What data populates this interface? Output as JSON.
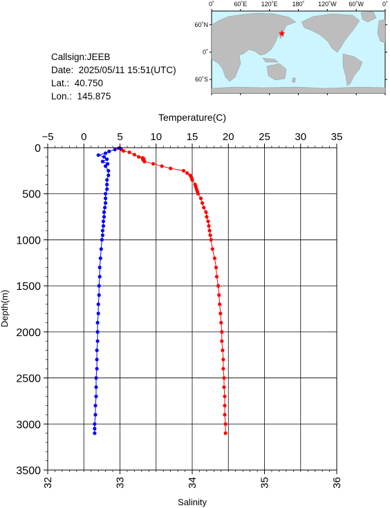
{
  "header": {
    "callsign": "Callsign:JEEB",
    "date": "Date:  2025/05/11 15:51(UTC)",
    "lat": "Lat.:  40.750",
    "lon": "Lon.:  145.875"
  },
  "map": {
    "lon_ticks": [
      "0˚",
      "60˚E",
      "120˚E",
      "180˚",
      "120˚W",
      "60˚W",
      "0˚"
    ],
    "lat_ticks": [
      "60˚N",
      "0˚",
      "60˚S"
    ],
    "ocean_color": "#ccf5ff",
    "land_color": "#bdbdbd",
    "station_marker_color": "#ff0000",
    "station": {
      "lat": 40.75,
      "lon": 145.875
    }
  },
  "chart_data": {
    "type": "scatter",
    "title": "",
    "ylabel": "Depth(m)",
    "ylim": [
      3500,
      0
    ],
    "y_ticks": [
      "0",
      "500",
      "1000",
      "1500",
      "2000",
      "2500",
      "3000",
      "3500"
    ],
    "grid": true,
    "temperature_axis": {
      "label": "Temperature(C)",
      "position": "top",
      "range": [
        -5,
        35
      ],
      "ticks": [
        "−5",
        "0",
        "5",
        "10",
        "15",
        "20",
        "25",
        "30",
        "35"
      ]
    },
    "salinity_axis": {
      "label": "Salinity",
      "position": "bottom",
      "range": [
        32,
        36
      ],
      "ticks": [
        "32",
        "33",
        "34",
        "35",
        "36"
      ]
    },
    "series": [
      {
        "color": "#ff0000",
        "axis": "temperature",
        "depth": [
          5,
          20,
          35,
          50,
          75,
          100,
          110,
          120,
          130,
          140,
          150,
          175,
          200,
          225,
          250,
          275,
          300,
          325,
          350,
          400,
          425,
          450,
          475,
          500,
          550,
          600,
          650,
          700,
          750,
          800,
          850,
          900,
          950,
          1000,
          1100,
          1200,
          1300,
          1400,
          1500,
          1600,
          1700,
          1800,
          1900,
          2000,
          2100,
          2200,
          2300,
          2400,
          2500,
          2600,
          2700,
          2800,
          2900,
          3000,
          3100
        ],
        "values": [
          4.8,
          5.2,
          5.5,
          6.3,
          7.0,
          7.6,
          8.1,
          8.3,
          8.2,
          8.3,
          8.4,
          9.6,
          10.8,
          12.0,
          13.8,
          14.3,
          14.7,
          14.9,
          15.0,
          15.4,
          15.5,
          15.6,
          15.7,
          15.8,
          16.2,
          16.4,
          16.6,
          16.9,
          17.0,
          17.2,
          17.3,
          17.4,
          17.5,
          17.6,
          17.8,
          18.1,
          18.3,
          18.4,
          18.6,
          18.7,
          18.8,
          18.9,
          19.0,
          19.1,
          19.1,
          19.2,
          19.3,
          19.3,
          19.4,
          19.4,
          19.5,
          19.5,
          19.5,
          19.6,
          19.6
        ]
      },
      {
        "color": "#0000ff",
        "axis": "salinity",
        "depth": [
          5,
          20,
          40,
          60,
          80,
          100,
          125,
          150,
          175,
          200,
          250,
          300,
          350,
          400,
          450,
          500,
          550,
          600,
          650,
          700,
          750,
          800,
          850,
          900,
          950,
          1000,
          1100,
          1200,
          1300,
          1400,
          1500,
          1600,
          1700,
          1800,
          1900,
          2000,
          2100,
          2200,
          2300,
          2400,
          2500,
          2600,
          2700,
          2800,
          2900,
          3000,
          3050,
          3100
        ],
        "values": [
          33.0,
          32.93,
          32.85,
          32.8,
          32.7,
          32.78,
          32.82,
          32.76,
          32.83,
          32.8,
          32.84,
          32.84,
          32.82,
          32.82,
          32.82,
          32.8,
          32.8,
          32.8,
          32.79,
          32.78,
          32.78,
          32.77,
          32.77,
          32.76,
          32.76,
          32.75,
          32.74,
          32.73,
          32.72,
          32.72,
          32.71,
          32.71,
          32.7,
          32.7,
          32.69,
          32.69,
          32.69,
          32.68,
          32.68,
          32.68,
          32.67,
          32.67,
          32.67,
          32.66,
          32.66,
          32.65,
          32.65,
          32.65
        ]
      }
    ]
  }
}
